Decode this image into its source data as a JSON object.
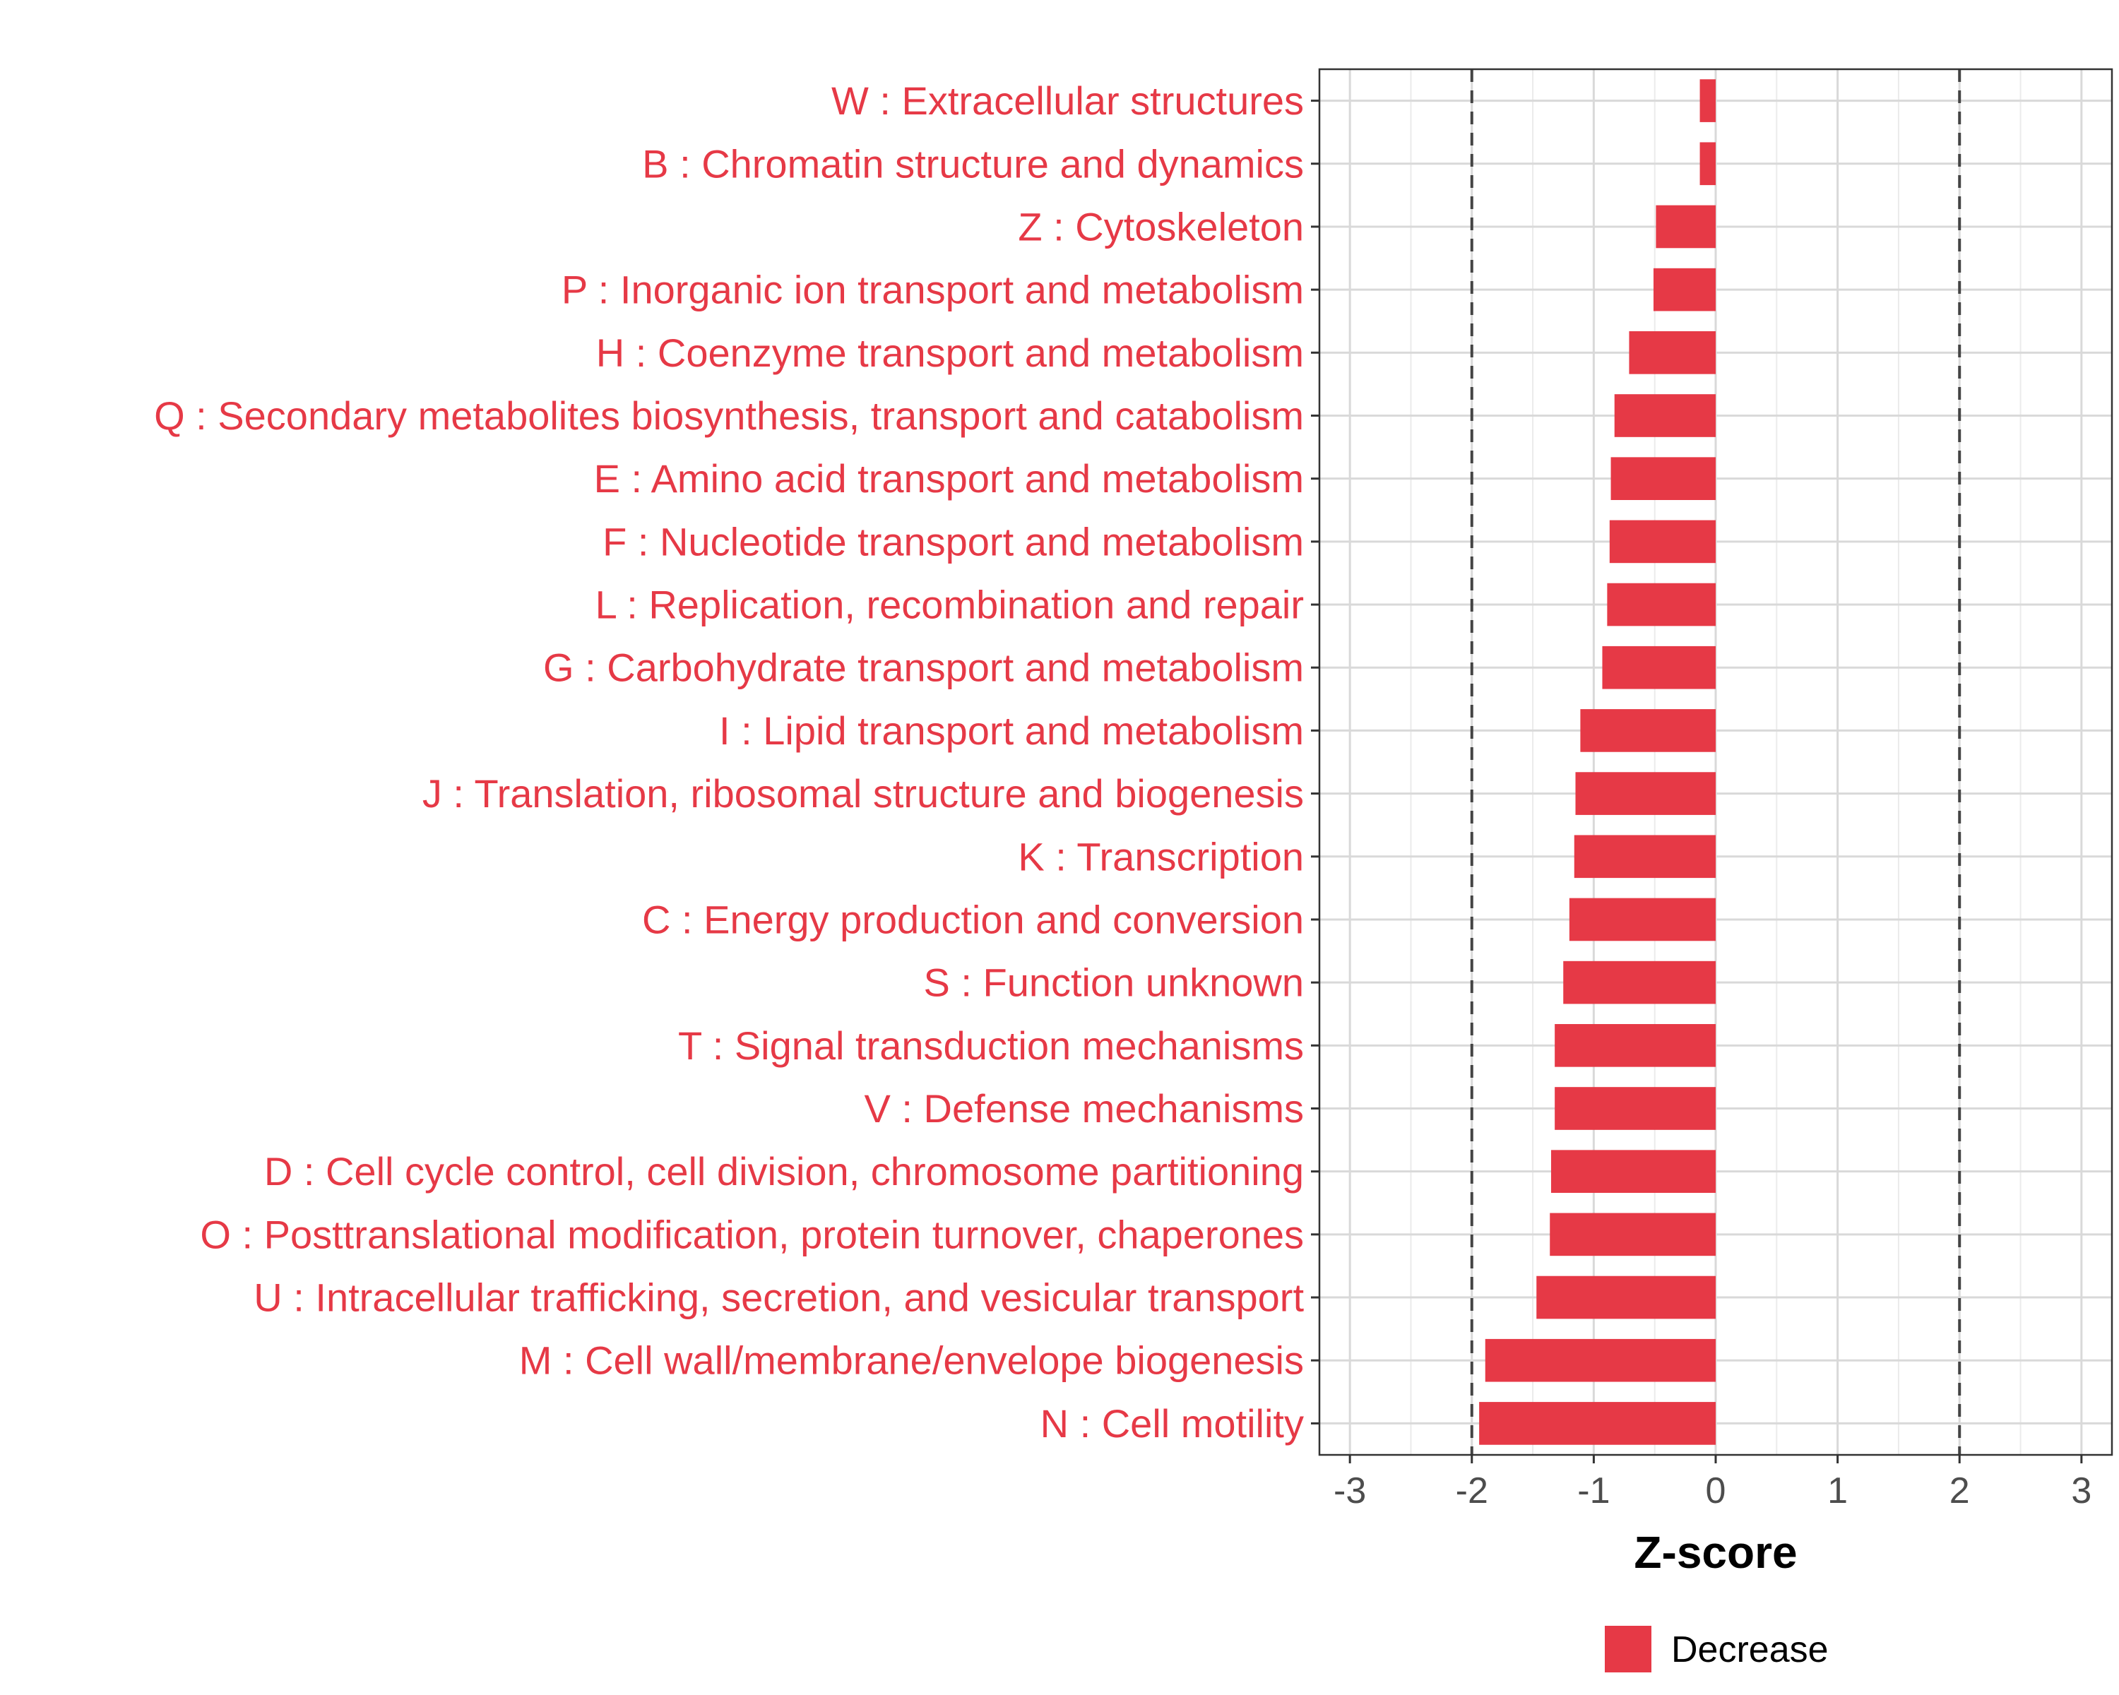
{
  "chart_data": {
    "type": "bar",
    "orientation": "horizontal",
    "categories": [
      "W : Extracellular structures",
      "B : Chromatin structure and dynamics",
      "Z : Cytoskeleton",
      "P : Inorganic ion transport and metabolism",
      "H : Coenzyme transport and metabolism",
      "Q : Secondary metabolites biosynthesis, transport and catabolism",
      "E : Amino acid transport and metabolism",
      "F : Nucleotide transport and metabolism",
      "L : Replication, recombination and repair",
      "G : Carbohydrate transport and metabolism",
      "I : Lipid transport and metabolism",
      "J : Translation, ribosomal structure and biogenesis",
      "K : Transcription",
      "C : Energy production and conversion",
      "S : Function unknown",
      "T : Signal transduction mechanisms",
      "V : Defense mechanisms",
      "D : Cell cycle control, cell division, chromosome partitioning",
      "O : Posttranslational modification, protein turnover, chaperones",
      "U : Intracellular trafficking, secretion, and vesicular transport",
      "M : Cell wall/membrane/envelope biogenesis",
      "N : Cell motility"
    ],
    "values": [
      -0.13,
      -0.13,
      -0.49,
      -0.51,
      -0.71,
      -0.83,
      -0.86,
      -0.87,
      -0.89,
      -0.93,
      -1.11,
      -1.15,
      -1.16,
      -1.2,
      -1.25,
      -1.32,
      -1.32,
      -1.35,
      -1.36,
      -1.47,
      -1.89,
      -1.94
    ],
    "bar_color": "#e63946",
    "label_color": "#e63946",
    "xlabel": "Z-score",
    "ylabel": "",
    "xlim": [
      -3.25,
      3.25
    ],
    "xticks": [
      -3,
      -2,
      -1,
      0,
      1,
      2,
      3
    ],
    "reference_lines": [
      -2,
      2
    ],
    "grid": true,
    "legend": {
      "position": "bottom",
      "entries": [
        {
          "label": "Decrease",
          "color": "#e63946"
        }
      ]
    }
  }
}
